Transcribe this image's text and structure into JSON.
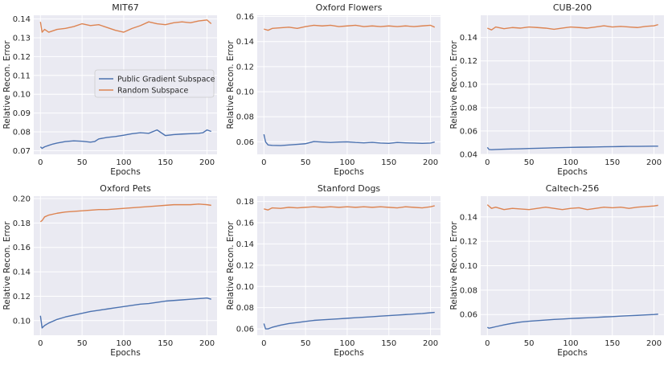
{
  "figure": {
    "legend_location": "center-right of first panel"
  },
  "colors": {
    "public": "#4c72b0",
    "random": "#dd8452",
    "panel_bg": "#eaeaf2",
    "grid": "#ffffff",
    "text": "#262626"
  },
  "chart_data": [
    {
      "type": "line",
      "title": "MIT67",
      "xlabel": "Epochs",
      "ylabel": "Relative Recon. Error",
      "xlim": [
        -8,
        212
      ],
      "ylim": [
        0.068,
        0.142
      ],
      "xticks": [
        0,
        50,
        100,
        150,
        200
      ],
      "yticks": [
        0.07,
        0.08,
        0.09,
        0.1,
        0.11,
        0.12,
        0.13,
        0.14
      ],
      "ytick_labels": [
        "0.07",
        "0.08",
        "0.09",
        "0.10",
        "0.11",
        "0.12",
        "0.13",
        "0.14"
      ],
      "legend": true,
      "series": [
        {
          "name": "Public Gradient Subspace",
          "color": "#4c72b0",
          "x": [
            0,
            2,
            5,
            10,
            15,
            20,
            30,
            40,
            50,
            60,
            65,
            70,
            80,
            90,
            100,
            110,
            120,
            130,
            140,
            145,
            150,
            160,
            170,
            180,
            190,
            195,
            200,
            205
          ],
          "y": [
            0.072,
            0.0712,
            0.072,
            0.0728,
            0.0735,
            0.074,
            0.0748,
            0.0752,
            0.075,
            0.0745,
            0.0748,
            0.0762,
            0.077,
            0.0775,
            0.0782,
            0.079,
            0.0795,
            0.0792,
            0.081,
            0.0795,
            0.078,
            0.0785,
            0.0788,
            0.079,
            0.0792,
            0.0795,
            0.081,
            0.0802
          ]
        },
        {
          "name": "Random Subspace",
          "color": "#dd8452",
          "x": [
            0,
            2,
            5,
            10,
            20,
            30,
            40,
            50,
            60,
            70,
            80,
            90,
            100,
            110,
            120,
            130,
            140,
            150,
            160,
            170,
            180,
            190,
            200,
            205
          ],
          "y": [
            0.1385,
            0.133,
            0.1345,
            0.133,
            0.1345,
            0.135,
            0.136,
            0.1375,
            0.1365,
            0.137,
            0.1355,
            0.134,
            0.133,
            0.135,
            0.1365,
            0.1385,
            0.1375,
            0.137,
            0.138,
            0.1385,
            0.138,
            0.139,
            0.1395,
            0.1375
          ]
        }
      ]
    },
    {
      "type": "line",
      "title": "Oxford Flowers",
      "xlabel": "Epochs",
      "ylabel": "Relative Recon. Error",
      "xlim": [
        -8,
        212
      ],
      "ylim": [
        0.05,
        0.161
      ],
      "xticks": [
        0,
        50,
        100,
        150,
        200
      ],
      "yticks": [
        0.06,
        0.08,
        0.1,
        0.12,
        0.14,
        0.16
      ],
      "ytick_labels": [
        "0.06",
        "0.08",
        "0.10",
        "0.12",
        "0.14",
        "0.16"
      ],
      "legend": false,
      "series": [
        {
          "name": "Public Gradient Subspace",
          "color": "#4c72b0",
          "x": [
            0,
            2,
            5,
            10,
            20,
            30,
            40,
            50,
            60,
            70,
            80,
            90,
            100,
            110,
            120,
            130,
            140,
            150,
            160,
            170,
            180,
            190,
            200,
            205
          ],
          "y": [
            0.066,
            0.06,
            0.0575,
            0.0572,
            0.057,
            0.0575,
            0.058,
            0.0585,
            0.0602,
            0.0598,
            0.0595,
            0.0598,
            0.06,
            0.0595,
            0.0592,
            0.0596,
            0.059,
            0.0588,
            0.0595,
            0.0592,
            0.059,
            0.0588,
            0.059,
            0.0598
          ]
        },
        {
          "name": "Random Subspace",
          "color": "#dd8452",
          "x": [
            0,
            5,
            10,
            20,
            30,
            40,
            50,
            60,
            70,
            80,
            90,
            100,
            110,
            120,
            130,
            140,
            150,
            160,
            170,
            180,
            190,
            200,
            205
          ],
          "y": [
            0.15,
            0.149,
            0.1505,
            0.151,
            0.1515,
            0.1505,
            0.152,
            0.153,
            0.1525,
            0.153,
            0.152,
            0.1525,
            0.153,
            0.152,
            0.1525,
            0.152,
            0.1525,
            0.152,
            0.1525,
            0.152,
            0.1525,
            0.153,
            0.1515
          ]
        }
      ]
    },
    {
      "type": "line",
      "title": "CUB-200",
      "xlabel": "Epochs",
      "ylabel": "Relative Recon. Error",
      "xlim": [
        -8,
        212
      ],
      "ylim": [
        0.04,
        0.159
      ],
      "xticks": [
        0,
        50,
        100,
        150,
        200
      ],
      "yticks": [
        0.04,
        0.06,
        0.08,
        0.1,
        0.12,
        0.14
      ],
      "ytick_labels": [
        "0.04",
        "0.06",
        "0.08",
        "0.10",
        "0.12",
        "0.14"
      ],
      "legend": false,
      "series": [
        {
          "name": "Public Gradient Subspace",
          "color": "#4c72b0",
          "x": [
            0,
            2,
            5,
            10,
            20,
            30,
            40,
            50,
            60,
            70,
            80,
            90,
            100,
            110,
            120,
            130,
            140,
            150,
            160,
            170,
            180,
            190,
            200,
            205
          ],
          "y": [
            0.046,
            0.0442,
            0.044,
            0.0442,
            0.0444,
            0.0446,
            0.0448,
            0.045,
            0.0452,
            0.0454,
            0.0456,
            0.0458,
            0.046,
            0.0461,
            0.0462,
            0.0463,
            0.0465,
            0.0466,
            0.0467,
            0.0468,
            0.0468,
            0.0469,
            0.047,
            0.047
          ]
        },
        {
          "name": "Random Subspace",
          "color": "#dd8452",
          "x": [
            0,
            5,
            10,
            20,
            30,
            40,
            50,
            60,
            70,
            80,
            90,
            100,
            110,
            120,
            130,
            140,
            150,
            160,
            170,
            180,
            190,
            200,
            205
          ],
          "y": [
            0.148,
            0.1465,
            0.149,
            0.1475,
            0.1485,
            0.148,
            0.149,
            0.1485,
            0.148,
            0.147,
            0.148,
            0.149,
            0.1485,
            0.148,
            0.149,
            0.15,
            0.149,
            0.1495,
            0.149,
            0.1485,
            0.1495,
            0.15,
            0.151
          ]
        }
      ]
    },
    {
      "type": "line",
      "title": "Oxford Pets",
      "xlabel": "Epochs",
      "ylabel": "Relative Recon. Error",
      "xlim": [
        -8,
        212
      ],
      "ylim": [
        0.088,
        0.202
      ],
      "xticks": [
        0,
        50,
        100,
        150,
        200
      ],
      "yticks": [
        0.1,
        0.12,
        0.14,
        0.16,
        0.18,
        0.2
      ],
      "ytick_labels": [
        "0.10",
        "0.12",
        "0.14",
        "0.16",
        "0.18",
        "0.20"
      ],
      "legend": false,
      "series": [
        {
          "name": "Public Gradient Subspace",
          "color": "#4c72b0",
          "x": [
            0,
            2,
            5,
            10,
            20,
            30,
            40,
            50,
            60,
            70,
            80,
            90,
            100,
            110,
            120,
            130,
            140,
            150,
            160,
            170,
            180,
            190,
            200,
            205
          ],
          "y": [
            0.104,
            0.094,
            0.096,
            0.098,
            0.101,
            0.103,
            0.1045,
            0.106,
            0.1075,
            0.1085,
            0.1095,
            0.1105,
            0.1115,
            0.1125,
            0.1135,
            0.114,
            0.115,
            0.116,
            0.1165,
            0.117,
            0.1175,
            0.118,
            0.1185,
            0.1175
          ]
        },
        {
          "name": "Random Subspace",
          "color": "#dd8452",
          "x": [
            0,
            2,
            5,
            10,
            20,
            30,
            40,
            50,
            60,
            70,
            80,
            90,
            100,
            110,
            120,
            130,
            140,
            150,
            160,
            170,
            180,
            190,
            200,
            205
          ],
          "y": [
            0.181,
            0.182,
            0.185,
            0.1865,
            0.188,
            0.189,
            0.1895,
            0.19,
            0.1905,
            0.191,
            0.191,
            0.1915,
            0.192,
            0.1925,
            0.193,
            0.1935,
            0.194,
            0.1945,
            0.195,
            0.195,
            0.195,
            0.1955,
            0.195,
            0.1945
          ]
        }
      ]
    },
    {
      "type": "line",
      "title": "Stanford Dogs",
      "xlabel": "Epochs",
      "ylabel": "Relative Recon. Error",
      "xlim": [
        -8,
        212
      ],
      "ylim": [
        0.054,
        0.185
      ],
      "xticks": [
        0,
        50,
        100,
        150,
        200
      ],
      "yticks": [
        0.06,
        0.08,
        0.1,
        0.12,
        0.14,
        0.16,
        0.18
      ],
      "ytick_labels": [
        "0.06",
        "0.08",
        "0.10",
        "0.12",
        "0.14",
        "0.16",
        "0.18"
      ],
      "legend": false,
      "series": [
        {
          "name": "Public Gradient Subspace",
          "color": "#4c72b0",
          "x": [
            0,
            2,
            5,
            10,
            20,
            30,
            40,
            50,
            60,
            70,
            80,
            90,
            100,
            110,
            120,
            130,
            140,
            150,
            160,
            170,
            180,
            190,
            200,
            205
          ],
          "y": [
            0.065,
            0.06,
            0.06,
            0.0615,
            0.0635,
            0.065,
            0.066,
            0.067,
            0.068,
            0.0685,
            0.069,
            0.0695,
            0.07,
            0.0705,
            0.071,
            0.0715,
            0.072,
            0.0725,
            0.073,
            0.0735,
            0.074,
            0.0745,
            0.0752,
            0.0755
          ]
        },
        {
          "name": "Random Subspace",
          "color": "#dd8452",
          "x": [
            0,
            5,
            10,
            20,
            30,
            40,
            50,
            60,
            70,
            80,
            90,
            100,
            110,
            120,
            130,
            140,
            150,
            160,
            170,
            180,
            190,
            200,
            205
          ],
          "y": [
            0.173,
            0.172,
            0.174,
            0.1735,
            0.1745,
            0.174,
            0.1745,
            0.175,
            0.1745,
            0.175,
            0.1745,
            0.175,
            0.1745,
            0.175,
            0.1745,
            0.175,
            0.1745,
            0.174,
            0.175,
            0.1745,
            0.174,
            0.175,
            0.176
          ]
        }
      ]
    },
    {
      "type": "line",
      "title": "Caltech-256",
      "xlabel": "Epochs",
      "ylabel": "Relative Recon. Error",
      "xlim": [
        -8,
        212
      ],
      "ylim": [
        0.043,
        0.157
      ],
      "xticks": [
        0,
        50,
        100,
        150,
        200
      ],
      "yticks": [
        0.06,
        0.08,
        0.1,
        0.12,
        0.14
      ],
      "ytick_labels": [
        "0.06",
        "0.08",
        "0.10",
        "0.12",
        "0.14"
      ],
      "legend": false,
      "series": [
        {
          "name": "Public Gradient Subspace",
          "color": "#4c72b0",
          "x": [
            0,
            2,
            5,
            10,
            20,
            30,
            40,
            50,
            60,
            70,
            80,
            90,
            100,
            110,
            120,
            130,
            140,
            150,
            160,
            170,
            180,
            190,
            200,
            205
          ],
          "y": [
            0.0495,
            0.0488,
            0.0492,
            0.05,
            0.0515,
            0.0528,
            0.0538,
            0.0545,
            0.055,
            0.0555,
            0.056,
            0.0563,
            0.0567,
            0.057,
            0.0573,
            0.0576,
            0.058,
            0.0583,
            0.0587,
            0.059,
            0.0593,
            0.0597,
            0.06,
            0.0603
          ]
        },
        {
          "name": "Random Subspace",
          "color": "#dd8452",
          "x": [
            0,
            5,
            10,
            20,
            30,
            40,
            50,
            60,
            70,
            80,
            90,
            100,
            110,
            120,
            130,
            140,
            150,
            160,
            170,
            180,
            190,
            200,
            205
          ],
          "y": [
            0.15,
            0.147,
            0.148,
            0.146,
            0.147,
            0.1465,
            0.146,
            0.147,
            0.148,
            0.147,
            0.146,
            0.147,
            0.1475,
            0.146,
            0.147,
            0.148,
            0.1475,
            0.148,
            0.147,
            0.148,
            0.1485,
            0.149,
            0.1495
          ]
        }
      ]
    }
  ]
}
